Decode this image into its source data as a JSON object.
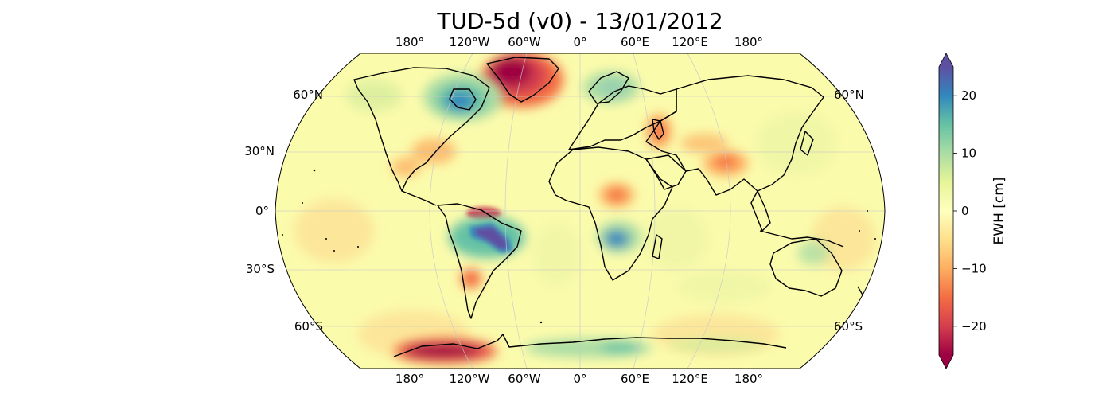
{
  "title": "TUD-5d (v0) - 13/01/2012",
  "map": {
    "projection": "robinson",
    "longitude_labels_top": [
      "180°",
      "120°W",
      "60°W",
      "0°",
      "60°E",
      "120°E",
      "180°"
    ],
    "longitude_labels_bottom": [
      "180°",
      "120°W",
      "60°W",
      "0°",
      "60°E",
      "120°E",
      "180°"
    ],
    "latitude_labels_left": [
      "60°N",
      "30°N",
      "0°",
      "30°S",
      "60°S"
    ],
    "latitude_labels_right": [
      "60°N",
      "60°S"
    ],
    "colormap": "Spectral",
    "colors": {
      "background": "#fbfbac",
      "coast": "#000000",
      "grid": "#d0d0d0",
      "deep_negative": "#9e0142",
      "negative": "#f46d43",
      "neutral": "#ffffbf",
      "positive": "#66c2a5",
      "deep_positive": "#5e4fa2"
    },
    "anomalies": [
      {
        "region": "Greenland",
        "sign": "negative",
        "strength": 1.0
      },
      {
        "region": "West Antarctica",
        "sign": "negative",
        "strength": 1.0
      },
      {
        "region": "Amazon basin",
        "sign": "positive",
        "strength": 1.0
      },
      {
        "region": "Hudson Bay",
        "sign": "positive",
        "strength": 0.7
      },
      {
        "region": "Southern Africa (Zambezi)",
        "sign": "positive",
        "strength": 0.6
      },
      {
        "region": "East Antarctica",
        "sign": "positive",
        "strength": 0.5
      },
      {
        "region": "Scandinavia",
        "sign": "positive",
        "strength": 0.3
      },
      {
        "region": "Caspian region",
        "sign": "negative",
        "strength": 0.6
      },
      {
        "region": "Northern India",
        "sign": "negative",
        "strength": 0.6
      },
      {
        "region": "Central Africa",
        "sign": "negative",
        "strength": 0.5
      },
      {
        "region": "Northern Amazon",
        "sign": "negative",
        "strength": 0.6
      },
      {
        "region": "La Plata basin",
        "sign": "negative",
        "strength": 0.5
      }
    ]
  },
  "colorbar": {
    "label": "EWH [cm]",
    "ticks": [
      "20",
      "10",
      "0",
      "−10",
      "−20"
    ],
    "tick_values": [
      20,
      10,
      0,
      -10,
      -20
    ],
    "range": [
      -25,
      25
    ],
    "extend": "both"
  }
}
